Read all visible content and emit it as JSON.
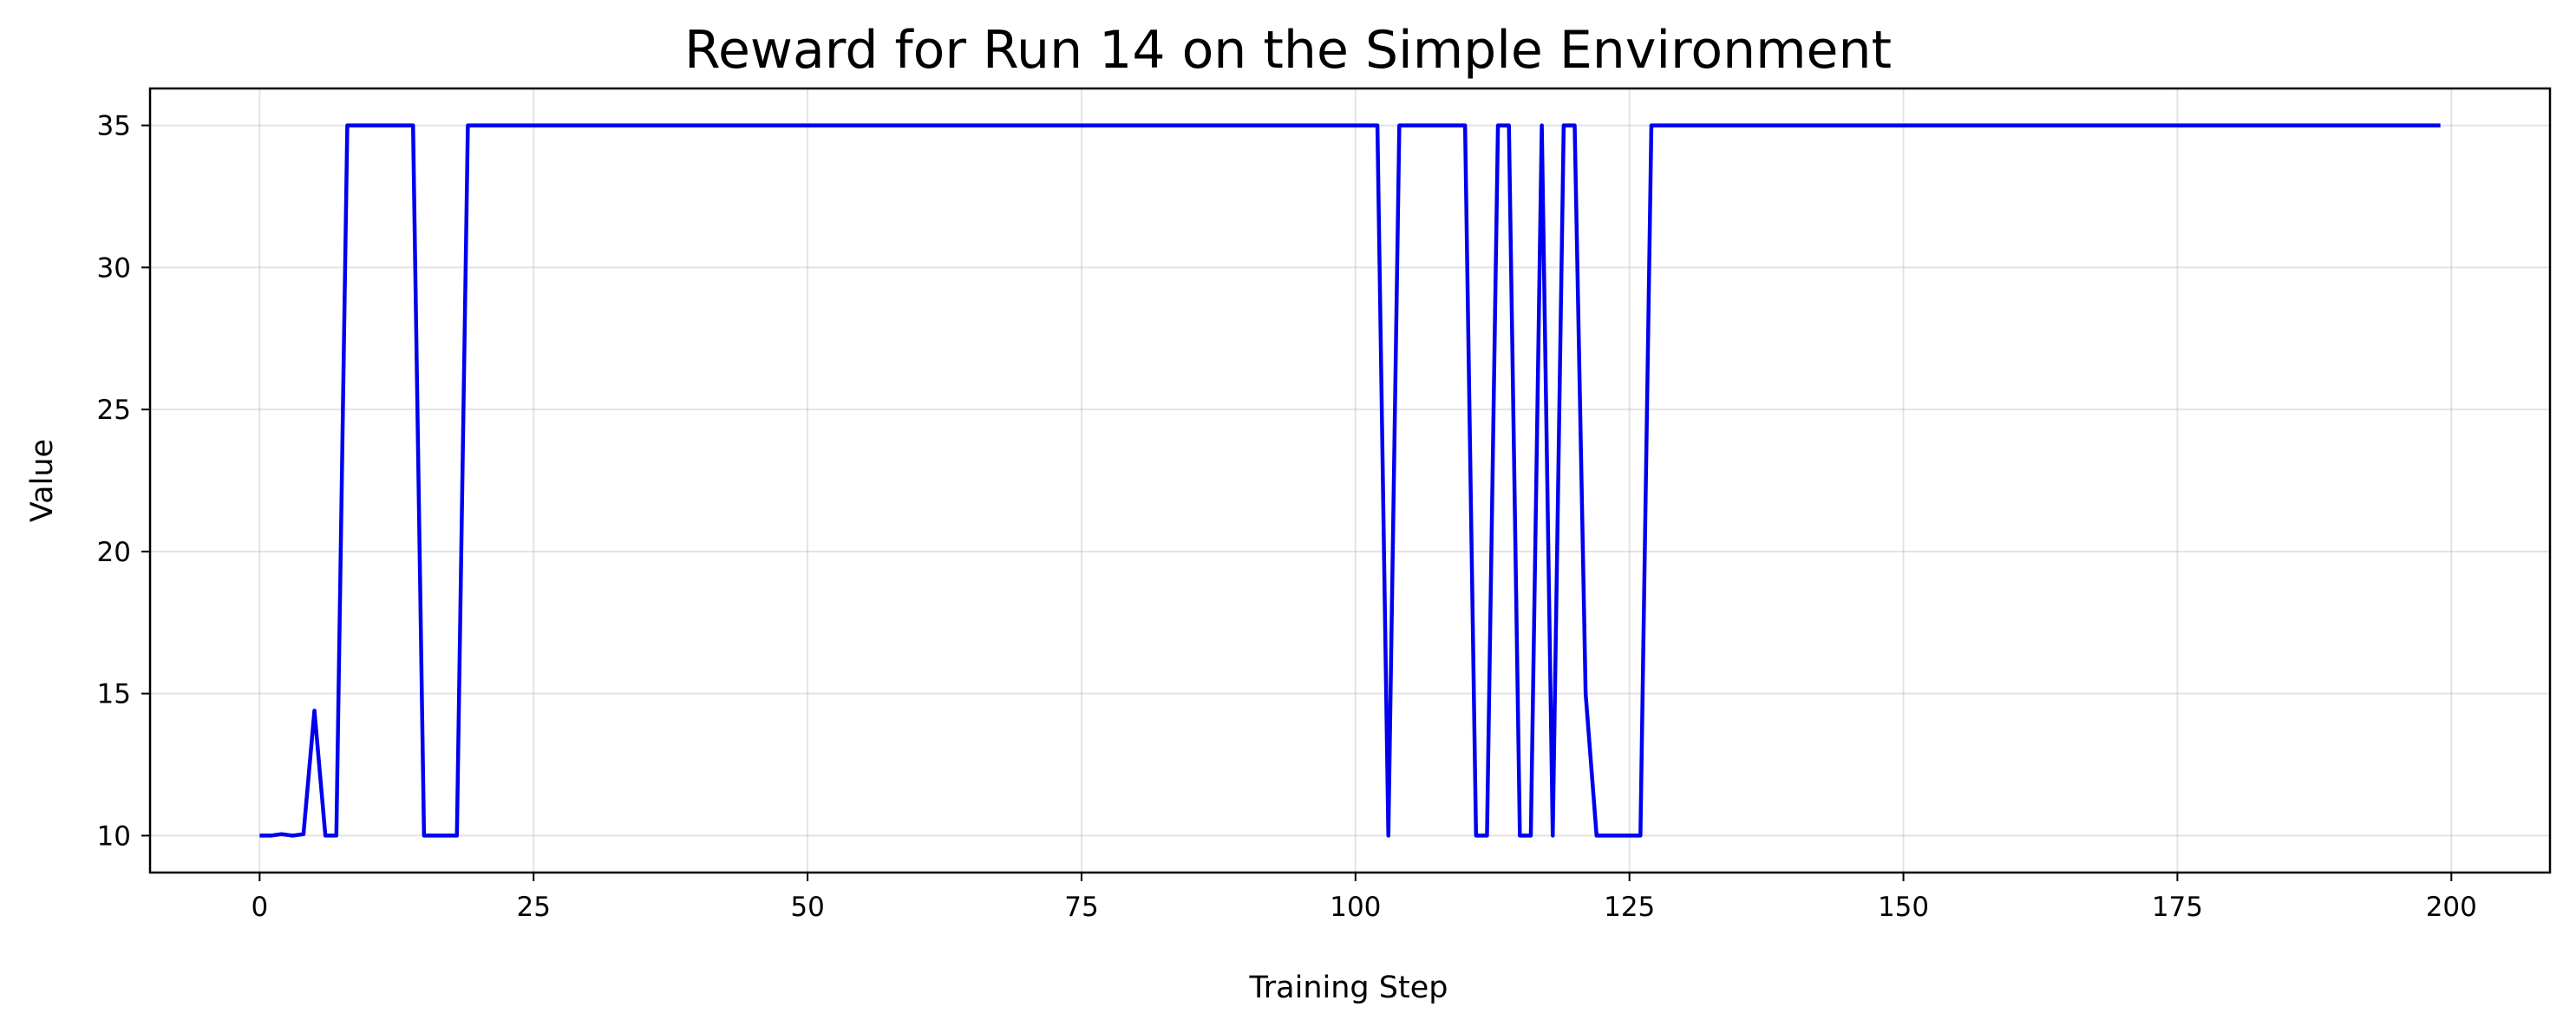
{
  "chart_data": {
    "type": "line",
    "title": "Reward for Run 14 on the Simple Environment",
    "xlabel": "Training Step",
    "ylabel": "Value",
    "xlim": [
      -10,
      209
    ],
    "ylim": [
      8.7,
      36.3
    ],
    "xticks": [
      0,
      25,
      50,
      75,
      100,
      125,
      150,
      175,
      200
    ],
    "yticks": [
      10,
      15,
      20,
      25,
      30,
      35
    ],
    "grid": true,
    "legend": "none",
    "series_color": "#0000ee",
    "x": [
      0,
      1,
      2,
      3,
      4,
      5,
      6,
      7,
      8,
      9,
      10,
      11,
      12,
      13,
      14,
      15,
      16,
      17,
      18,
      19,
      20,
      21,
      22,
      23,
      24,
      25,
      26,
      27,
      28,
      29,
      30,
      31,
      32,
      33,
      34,
      35,
      36,
      37,
      38,
      39,
      40,
      41,
      42,
      43,
      44,
      45,
      46,
      47,
      48,
      49,
      50,
      51,
      52,
      53,
      54,
      55,
      56,
      57,
      58,
      59,
      60,
      61,
      62,
      63,
      64,
      65,
      66,
      67,
      68,
      69,
      70,
      71,
      72,
      73,
      74,
      75,
      76,
      77,
      78,
      79,
      80,
      81,
      82,
      83,
      84,
      85,
      86,
      87,
      88,
      89,
      90,
      91,
      92,
      93,
      94,
      95,
      96,
      97,
      98,
      99,
      100,
      101,
      102,
      103,
      104,
      105,
      106,
      107,
      108,
      109,
      110,
      111,
      112,
      113,
      114,
      115,
      116,
      117,
      118,
      119,
      120,
      121,
      122,
      123,
      124,
      125,
      126,
      127,
      128,
      129,
      130,
      131,
      132,
      133,
      134,
      135,
      136,
      137,
      138,
      139,
      140,
      141,
      142,
      143,
      144,
      145,
      146,
      147,
      148,
      149,
      150,
      151,
      152,
      153,
      154,
      155,
      156,
      157,
      158,
      159,
      160,
      161,
      162,
      163,
      164,
      165,
      166,
      167,
      168,
      169,
      170,
      171,
      172,
      173,
      174,
      175,
      176,
      177,
      178,
      179,
      180,
      181,
      182,
      183,
      184,
      185,
      186,
      187,
      188,
      189,
      190,
      191,
      192,
      193,
      194,
      195,
      196,
      197,
      198,
      199
    ],
    "values": [
      10,
      10,
      10.05,
      10,
      10.05,
      14.4,
      10,
      10,
      35,
      35,
      35,
      35,
      35,
      35,
      35,
      10,
      10,
      10,
      10,
      35,
      35,
      35,
      35,
      35,
      35,
      35,
      35,
      35,
      35,
      35,
      35,
      35,
      35,
      35,
      35,
      35,
      35,
      35,
      35,
      35,
      35,
      35,
      35,
      35,
      35,
      35,
      35,
      35,
      35,
      35,
      35,
      35,
      35,
      35,
      35,
      35,
      35,
      35,
      35,
      35,
      35,
      35,
      35,
      35,
      35,
      35,
      35,
      35,
      35,
      35,
      35,
      35,
      35,
      35,
      35,
      35,
      35,
      35,
      35,
      35,
      35,
      35,
      35,
      35,
      35,
      35,
      35,
      35,
      35,
      35,
      35,
      35,
      35,
      35,
      35,
      35,
      35,
      35,
      35,
      35,
      35,
      35,
      35,
      10,
      35,
      35,
      35,
      35,
      35,
      35,
      35,
      10,
      10,
      35,
      35,
      10,
      10,
      35,
      10,
      35,
      35,
      15,
      10,
      10,
      10,
      10,
      10,
      35,
      35,
      35,
      35,
      35,
      35,
      35,
      35,
      35,
      35,
      35,
      35,
      35,
      35,
      35,
      35,
      35,
      35,
      35,
      35,
      35,
      35,
      35,
      35,
      35,
      35,
      35,
      35,
      35,
      35,
      35,
      35,
      35,
      35,
      35,
      35,
      35,
      35,
      35,
      35,
      35,
      35,
      35,
      35,
      35,
      35,
      35,
      35,
      35,
      35,
      35,
      35,
      35,
      35,
      35,
      35,
      35,
      35,
      35,
      35,
      35,
      35,
      35,
      35,
      35,
      35,
      35,
      35,
      35,
      35,
      35,
      35,
      35
    ]
  }
}
